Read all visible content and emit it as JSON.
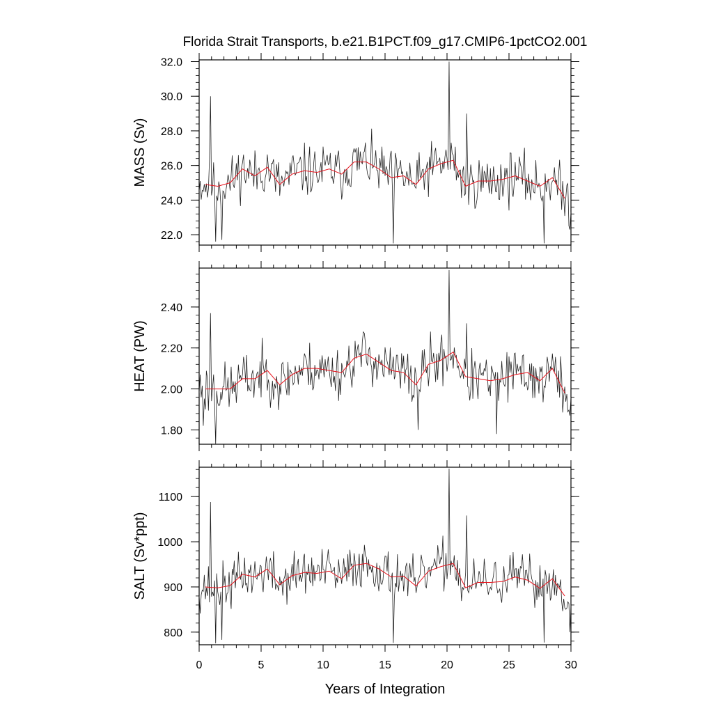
{
  "title": "Florida Strait Transports, b.e21.B1PCT.f09_g17.CMIP6-1pctCO2.001",
  "xlabel": "Years of Integration",
  "colors": {
    "monthly": "#222222",
    "annual": "#e8101a",
    "axes": "#000000"
  },
  "chart_data": [
    {
      "type": "line",
      "ylabel": "MASS (Sv)",
      "xlim": [
        0,
        30
      ],
      "ylim": [
        21.4,
        32.1
      ],
      "x_ticks": [
        "0",
        "5",
        "10",
        "15",
        "20",
        "25",
        "30"
      ],
      "y_ticks": [
        {
          "value": 22.0,
          "label": "22.0"
        },
        {
          "value": 24.0,
          "label": "24.0"
        },
        {
          "value": 26.0,
          "label": "26.0"
        },
        {
          "value": 28.0,
          "label": "28.0"
        },
        {
          "value": 30.0,
          "label": "30.0"
        },
        {
          "value": 32.0,
          "label": "32.0"
        }
      ],
      "grid": false,
      "series": [
        {
          "kind": "monthly",
          "mean": 25.2,
          "amp": 2.2,
          "seed": 11,
          "start": [
            0.0,
            24.5
          ],
          "spikes": [
            [
              0.9,
              30.0
            ],
            [
              1.3,
              21.6
            ],
            [
              1.8,
              21.7
            ],
            [
              15.7,
              21.5
            ],
            [
              20.2,
              32.0
            ],
            [
              21.6,
              29.0
            ],
            [
              27.8,
              21.5
            ],
            [
              29.9,
              22.3
            ]
          ]
        },
        {
          "kind": "annual",
          "x": [
            0.5,
            1.5,
            2.5,
            3.5,
            4.5,
            5.5,
            6.5,
            7.5,
            8.5,
            9.5,
            10.5,
            11.5,
            12.5,
            13.5,
            14.5,
            15.5,
            16.5,
            17.5,
            18.5,
            19.5,
            20.5,
            21.5,
            22.5,
            23.5,
            24.5,
            25.5,
            26.5,
            27.5,
            28.5,
            29.5
          ],
          "y": [
            24.9,
            24.8,
            25.0,
            25.8,
            25.4,
            25.9,
            24.9,
            25.5,
            25.7,
            25.6,
            25.8,
            25.5,
            26.2,
            26.2,
            25.8,
            25.3,
            25.4,
            24.9,
            25.8,
            26.1,
            26.3,
            24.8,
            25.1,
            25.1,
            25.2,
            25.4,
            25.1,
            24.8,
            25.3,
            24.1
          ]
        }
      ]
    },
    {
      "type": "line",
      "ylabel": "HEAT (PW)",
      "xlim": [
        0,
        30
      ],
      "ylim": [
        1.73,
        2.59
      ],
      "x_ticks": [
        "0",
        "5",
        "10",
        "15",
        "20",
        "25",
        "30"
      ],
      "y_ticks": [
        {
          "value": 1.8,
          "label": "1.80"
        },
        {
          "value": 2.0,
          "label": "2.00"
        },
        {
          "value": 2.2,
          "label": "2.20"
        },
        {
          "value": 2.4,
          "label": "2.40"
        }
      ],
      "grid": false,
      "series": [
        {
          "kind": "monthly",
          "mean": 2.06,
          "amp": 0.19,
          "seed": 23,
          "start": [
            0.0,
            1.98
          ],
          "spikes": [
            [
              0.3,
              1.82
            ],
            [
              0.9,
              2.37
            ],
            [
              1.3,
              1.73
            ],
            [
              17.7,
              1.8
            ],
            [
              20.2,
              2.58
            ],
            [
              21.6,
              2.32
            ],
            [
              24.0,
              1.78
            ],
            [
              29.9,
              1.87
            ]
          ]
        },
        {
          "kind": "annual",
          "x": [
            0.5,
            1.5,
            2.5,
            3.5,
            4.5,
            5.5,
            6.5,
            7.5,
            8.5,
            9.5,
            10.5,
            11.5,
            12.5,
            13.5,
            14.5,
            15.5,
            16.5,
            17.5,
            18.5,
            19.5,
            20.5,
            21.5,
            22.5,
            23.5,
            24.5,
            25.5,
            26.5,
            27.5,
            28.5,
            29.5
          ],
          "y": [
            2.0,
            2.0,
            2.0,
            2.05,
            2.05,
            2.09,
            2.02,
            2.07,
            2.1,
            2.1,
            2.09,
            2.08,
            2.15,
            2.17,
            2.13,
            2.09,
            2.08,
            2.02,
            2.12,
            2.14,
            2.18,
            2.06,
            2.05,
            2.04,
            2.05,
            2.07,
            2.08,
            2.04,
            2.1,
            1.98
          ]
        }
      ]
    },
    {
      "type": "line",
      "ylabel": "SALT (Sv*ppt)",
      "xlim": [
        0,
        30
      ],
      "ylim": [
        772,
        1165
      ],
      "x_ticks": [
        "0",
        "5",
        "10",
        "15",
        "20",
        "25",
        "30"
      ],
      "y_ticks": [
        {
          "value": 800,
          "label": "800"
        },
        {
          "value": 900,
          "label": "900"
        },
        {
          "value": 1000,
          "label": "1000"
        },
        {
          "value": 1100,
          "label": "1100"
        }
      ],
      "grid": false,
      "series": [
        {
          "kind": "monthly",
          "mean": 913,
          "amp": 78,
          "seed": 37,
          "start": [
            0.0,
            880
          ],
          "spikes": [
            [
              0.9,
              1088
            ],
            [
              1.3,
              775
            ],
            [
              1.8,
              783
            ],
            [
              15.7,
              776
            ],
            [
              20.2,
              1162
            ],
            [
              21.6,
              1058
            ],
            [
              27.8,
              777
            ],
            [
              29.9,
              800
            ]
          ]
        },
        {
          "kind": "annual",
          "x": [
            0.5,
            1.5,
            2.5,
            3.5,
            4.5,
            5.5,
            6.5,
            7.5,
            8.5,
            9.5,
            10.5,
            11.5,
            12.5,
            13.5,
            14.5,
            15.5,
            16.5,
            17.5,
            18.5,
            19.5,
            20.5,
            21.5,
            22.5,
            23.5,
            24.5,
            25.5,
            26.5,
            27.5,
            28.5,
            29.5
          ],
          "y": [
            900,
            898,
            903,
            928,
            922,
            940,
            905,
            925,
            932,
            930,
            935,
            918,
            948,
            952,
            940,
            922,
            924,
            902,
            935,
            945,
            952,
            898,
            910,
            910,
            912,
            922,
            915,
            897,
            918,
            880
          ]
        }
      ]
    }
  ]
}
